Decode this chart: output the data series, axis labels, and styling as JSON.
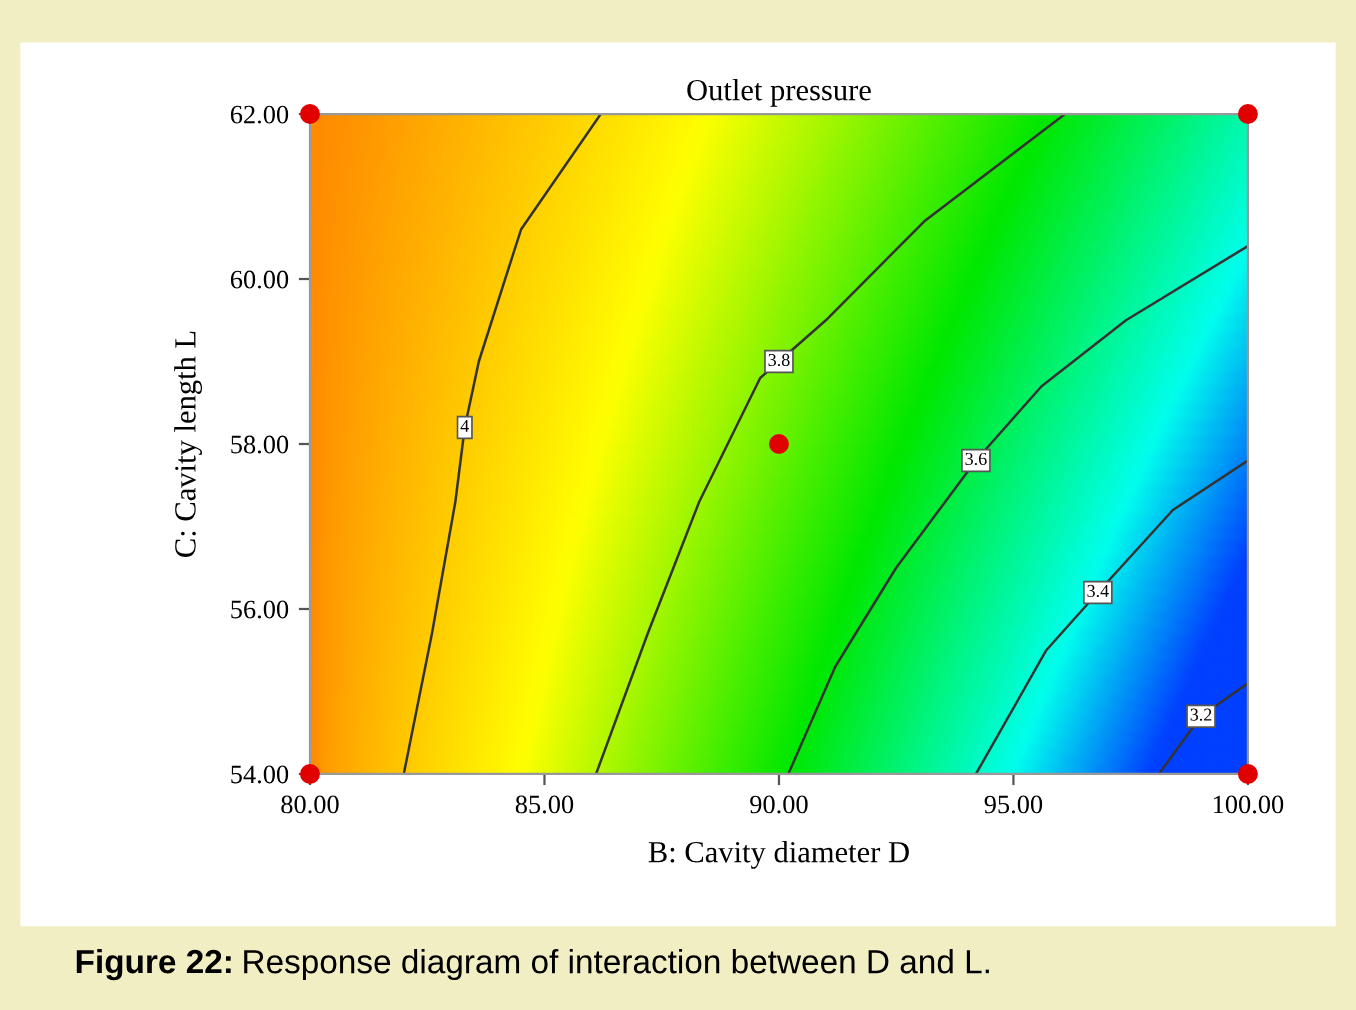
{
  "chart_data": {
    "type": "line",
    "title": "Outlet pressure",
    "xlabel": "B: Cavity diameter D",
    "ylabel": "C: Cavity length L",
    "xlim": [
      80,
      100
    ],
    "ylim": [
      54,
      62
    ],
    "xticks": [
      {
        "value": 80,
        "label": "80.00"
      },
      {
        "value": 85,
        "label": "85.00"
      },
      {
        "value": 90,
        "label": "90.00"
      },
      {
        "value": 95,
        "label": "95.00"
      },
      {
        "value": 100,
        "label": "100.00"
      }
    ],
    "yticks": [
      {
        "value": 54,
        "label": "54.00"
      },
      {
        "value": 56,
        "label": "56.00"
      },
      {
        "value": 58,
        "label": "58.00"
      },
      {
        "value": 60,
        "label": "60.00"
      },
      {
        "value": 62,
        "label": "62.00"
      }
    ],
    "grid": false,
    "legend": false,
    "series": [
      {
        "name": "4",
        "color": "#333333",
        "x": [
          82.0,
          82.6,
          83.1,
          83.3,
          83.6,
          84.5,
          86.2
        ],
        "values": [
          54.0,
          55.7,
          57.3,
          58.2,
          59.0,
          60.6,
          62.0
        ]
      },
      {
        "name": "3.8",
        "color": "#333333",
        "x": [
          86.1,
          87.2,
          88.3,
          89.6,
          90.0,
          91.0,
          93.1,
          96.1
        ],
        "values": [
          54.0,
          55.7,
          57.3,
          58.8,
          59.0,
          59.5,
          60.7,
          62.0
        ]
      },
      {
        "name": "3.6",
        "color": "#333333",
        "x": [
          90.2,
          91.2,
          92.5,
          94.2,
          95.6,
          97.4,
          100.0
        ],
        "values": [
          54.0,
          55.3,
          56.5,
          57.8,
          58.7,
          59.5,
          60.4
        ]
      },
      {
        "name": "3.4",
        "color": "#333333",
        "x": [
          94.2,
          95.7,
          96.8,
          98.4,
          100.0
        ],
        "values": [
          54.0,
          55.5,
          56.2,
          57.2,
          57.8
        ]
      },
      {
        "name": "3.2",
        "color": "#333333",
        "x": [
          98.1,
          99.0,
          100.0
        ],
        "values": [
          54.0,
          54.7,
          55.1
        ]
      },
      {
        "type": "scatter",
        "color": "#e00000",
        "x": [
          80,
          100,
          80,
          100,
          90
        ],
        "values": [
          62,
          62,
          54,
          54,
          58
        ]
      }
    ],
    "annotations": [
      "Figure 22: Response diagram of interaction between D and L."
    ]
  }
}
